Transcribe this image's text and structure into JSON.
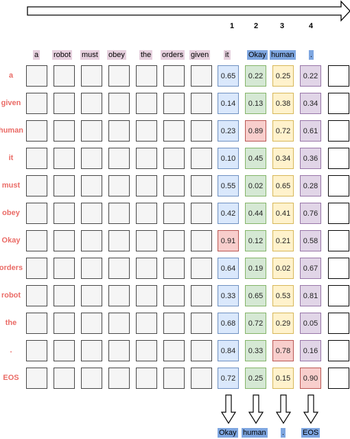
{
  "steps": [
    "1",
    "2",
    "3",
    "4"
  ],
  "input_tokens": [
    "a",
    "robot",
    "must",
    "obey",
    "the",
    "orders",
    "given"
  ],
  "generated_tokens": [
    "it",
    "Okay",
    "human",
    "."
  ],
  "row_labels": [
    "a",
    "given",
    "human",
    "it",
    "must",
    "obey",
    "Okay",
    "orders",
    "robot",
    "the",
    ".",
    "EOS"
  ],
  "scores": [
    [
      "0.65",
      "0.22",
      "0.25",
      "0.22"
    ],
    [
      "0.14",
      "0.13",
      "0.38",
      "0.34"
    ],
    [
      "0.23",
      "0.89",
      "0.72",
      "0.61"
    ],
    [
      "0.10",
      "0.45",
      "0.34",
      "0.36"
    ],
    [
      "0.55",
      "0.02",
      "0.65",
      "0.28"
    ],
    [
      "0.42",
      "0.44",
      "0.41",
      "0.76"
    ],
    [
      "0.91",
      "0.12",
      "0.21",
      "0.58"
    ],
    [
      "0.64",
      "0.19",
      "0.02",
      "0.67"
    ],
    [
      "0.33",
      "0.65",
      "0.53",
      "0.81"
    ],
    [
      "0.68",
      "0.72",
      "0.29",
      "0.05"
    ],
    [
      "0.84",
      "0.33",
      "0.78",
      "0.16"
    ],
    [
      "0.72",
      "0.25",
      "0.15",
      "0.90"
    ]
  ],
  "selected_rows": [
    6,
    2,
    10,
    11
  ],
  "output_tokens": [
    "Okay",
    "human",
    ".",
    "EOS"
  ],
  "colors": {
    "row_label": "#ea6b66",
    "input_highlight": "#e6d0de",
    "output_highlight": "#7ea6e0",
    "col1": "#dae8fc",
    "col2": "#d5e8d4",
    "col3": "#fff2cc",
    "col4": "#e1d5e7",
    "selected": "#f8cecc"
  }
}
